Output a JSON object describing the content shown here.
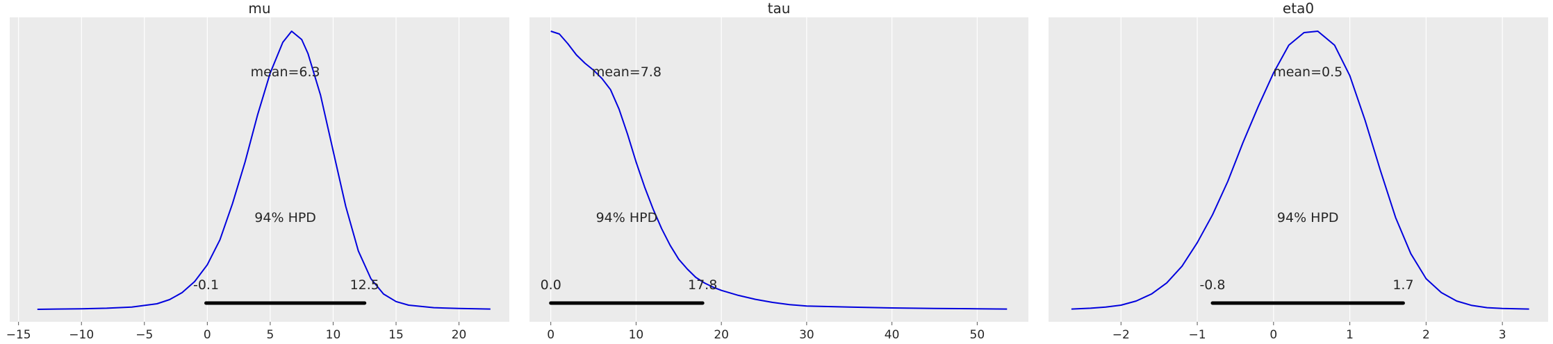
{
  "chart_data": [
    {
      "type": "line",
      "title": "mu",
      "xlim": [
        -15.7,
        24.0
      ],
      "xticks": [
        -15,
        -10,
        -5,
        0,
        5,
        10,
        15,
        20
      ],
      "xtick_labels": [
        "−15",
        "−10",
        "−5",
        "0",
        "5",
        "10",
        "15",
        "20"
      ],
      "series": [
        {
          "name": "mu posterior density",
          "color": "#0000dd",
          "x": [
            -13.5,
            -12,
            -10,
            -8,
            -6,
            -4,
            -3,
            -2,
            -1,
            0,
            1,
            2,
            3,
            4,
            5,
            6,
            6.7,
            7.5,
            8,
            9,
            10,
            11,
            12,
            13,
            14,
            15,
            16,
            18,
            20,
            22.5
          ],
          "y": [
            0.0,
            0.001,
            0.002,
            0.004,
            0.008,
            0.02,
            0.035,
            0.06,
            0.1,
            0.16,
            0.25,
            0.38,
            0.53,
            0.7,
            0.85,
            0.96,
            1.0,
            0.97,
            0.92,
            0.77,
            0.57,
            0.37,
            0.21,
            0.11,
            0.055,
            0.028,
            0.015,
            0.006,
            0.003,
            0.001
          ]
        }
      ],
      "mean_label": "mean=6.3",
      "hpd_label": "94% HPD",
      "hpd": [
        -0.1,
        12.5
      ],
      "hpd_low_label": "-0.1",
      "hpd_high_label": "12.5"
    },
    {
      "type": "line",
      "title": "tau",
      "xlim": [
        -2.5,
        56.0
      ],
      "xticks": [
        0,
        10,
        20,
        30,
        40,
        50
      ],
      "xtick_labels": [
        "0",
        "10",
        "20",
        "30",
        "40",
        "50"
      ],
      "series": [
        {
          "name": "tau posterior density",
          "color": "#0000dd",
          "x": [
            0,
            1,
            2,
            3,
            4,
            5,
            6,
            7,
            8,
            9,
            10,
            11,
            12,
            13,
            14,
            15,
            16,
            17,
            18,
            19,
            20,
            22,
            24,
            26,
            28,
            30,
            35,
            40,
            45,
            50,
            53.5
          ],
          "y": [
            1.0,
            0.99,
            0.955,
            0.915,
            0.885,
            0.86,
            0.83,
            0.79,
            0.72,
            0.63,
            0.53,
            0.44,
            0.36,
            0.29,
            0.23,
            0.18,
            0.145,
            0.115,
            0.095,
            0.08,
            0.068,
            0.05,
            0.036,
            0.025,
            0.017,
            0.012,
            0.008,
            0.005,
            0.003,
            0.002,
            0.001
          ]
        }
      ],
      "mean_label": "mean=7.8",
      "hpd_label": "94% HPD",
      "hpd": [
        0.0,
        17.8
      ],
      "hpd_low_label": "0.0",
      "hpd_high_label": "17.8"
    },
    {
      "type": "line",
      "title": "eta0",
      "xlim": [
        -2.95,
        3.6
      ],
      "xticks": [
        -2,
        -1,
        0,
        1,
        2,
        3
      ],
      "xtick_labels": [
        "−2",
        "−1",
        "0",
        "1",
        "2",
        "3"
      ],
      "series": [
        {
          "name": "eta0 posterior density",
          "color": "#0000dd",
          "x": [
            -2.65,
            -2.4,
            -2.2,
            -2.0,
            -1.8,
            -1.6,
            -1.4,
            -1.2,
            -1.0,
            -0.8,
            -0.6,
            -0.4,
            -0.2,
            0.0,
            0.2,
            0.4,
            0.58,
            0.8,
            1.0,
            1.2,
            1.4,
            1.6,
            1.8,
            2.0,
            2.2,
            2.4,
            2.6,
            2.8,
            3.0,
            3.35
          ],
          "y": [
            0.001,
            0.004,
            0.008,
            0.015,
            0.03,
            0.055,
            0.095,
            0.155,
            0.24,
            0.34,
            0.46,
            0.6,
            0.73,
            0.85,
            0.95,
            0.995,
            1.0,
            0.95,
            0.84,
            0.68,
            0.5,
            0.33,
            0.2,
            0.11,
            0.06,
            0.03,
            0.014,
            0.006,
            0.003,
            0.001
          ]
        }
      ],
      "mean_label": "mean=0.5",
      "hpd_label": "94% HPD",
      "hpd": [
        -0.8,
        1.7
      ],
      "hpd_low_label": "-0.8",
      "hpd_high_label": "1.7"
    }
  ]
}
